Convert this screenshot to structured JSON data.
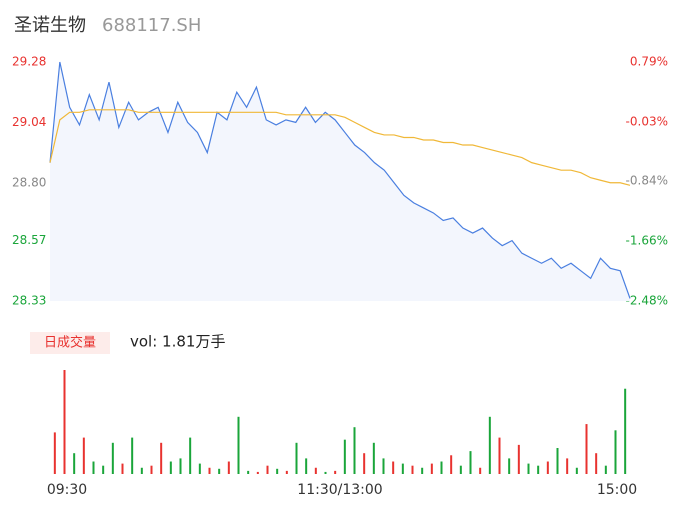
{
  "header": {
    "title": "圣诺生物",
    "code": "688117.SH"
  },
  "chart_data": [
    {
      "type": "line",
      "ylim": [
        28.33,
        29.28
      ],
      "yticks": [
        29.28,
        29.04,
        {
          "value": 28.8,
          "label": "28.80"
        },
        28.57,
        28.33
      ],
      "ytick_colors": [
        "#e8322f",
        "#e8322f",
        "#888888",
        "#1aa53a",
        "#1aa53a"
      ],
      "y2lim": [
        -2.48,
        0.79
      ],
      "y2ticks": [
        {
          "value": 0.79,
          "label": "0.79%"
        },
        {
          "value": -0.03,
          "label": "-0.03%"
        },
        {
          "value": -0.84,
          "label": "-0.84%"
        },
        {
          "value": -1.66,
          "label": "-1.66%"
        },
        {
          "value": -2.48,
          "label": "-2.48%"
        }
      ],
      "series": [
        {
          "color": "#4a7fe0",
          "values": [
            28.88,
            29.28,
            29.1,
            29.03,
            29.15,
            29.05,
            29.2,
            29.02,
            29.12,
            29.05,
            29.08,
            29.1,
            29.0,
            29.12,
            29.04,
            29.0,
            28.92,
            29.08,
            29.05,
            29.16,
            29.1,
            29.18,
            29.05,
            29.03,
            29.05,
            29.04,
            29.1,
            29.04,
            29.08,
            29.05,
            29.0,
            28.95,
            28.92,
            28.88,
            28.85,
            28.8,
            28.75,
            28.72,
            28.7,
            28.68,
            28.65,
            28.66,
            28.62,
            28.6,
            28.62,
            28.58,
            28.55,
            28.57,
            28.52,
            28.5,
            28.48,
            28.5,
            28.46,
            28.48,
            28.45,
            28.42,
            28.5,
            28.46,
            28.45,
            28.34
          ]
        },
        {
          "color": "#f0b838",
          "values": [
            28.88,
            29.05,
            29.08,
            29.08,
            29.09,
            29.09,
            29.09,
            29.09,
            29.09,
            29.08,
            29.08,
            29.08,
            29.08,
            29.08,
            29.08,
            29.08,
            29.08,
            29.08,
            29.08,
            29.08,
            29.08,
            29.08,
            29.08,
            29.08,
            29.07,
            29.07,
            29.07,
            29.07,
            29.07,
            29.07,
            29.06,
            29.04,
            29.02,
            29.0,
            28.99,
            28.99,
            28.98,
            28.98,
            28.97,
            28.97,
            28.96,
            28.96,
            28.95,
            28.95,
            28.94,
            28.93,
            28.92,
            28.91,
            28.9,
            28.88,
            28.87,
            28.86,
            28.85,
            28.85,
            28.84,
            28.82,
            28.81,
            28.8,
            28.8,
            28.79
          ]
        }
      ]
    },
    {
      "type": "bar",
      "legend_label": "日成交量",
      "summary": "vol: 1.81万手",
      "ylim": [
        0,
        100
      ],
      "categories": [
        "09:30",
        null,
        null,
        null,
        null,
        null,
        null,
        null,
        null,
        null,
        null,
        null,
        null,
        null,
        null,
        null,
        null,
        null,
        null,
        null,
        null,
        null,
        null,
        null,
        null,
        null,
        null,
        null,
        null,
        null,
        "11:30/13:00",
        null,
        null,
        null,
        null,
        null,
        null,
        null,
        null,
        null,
        null,
        null,
        null,
        null,
        null,
        null,
        null,
        null,
        null,
        null,
        null,
        null,
        null,
        null,
        null,
        null,
        null,
        null,
        null,
        "15:00"
      ],
      "values": [
        40,
        100,
        20,
        35,
        12,
        8,
        30,
        10,
        35,
        6,
        8,
        30,
        12,
        15,
        35,
        10,
        6,
        5,
        12,
        55,
        3,
        2,
        8,
        5,
        3,
        30,
        15,
        6,
        2,
        3,
        33,
        45,
        20,
        30,
        15,
        12,
        10,
        8,
        6,
        10,
        12,
        18,
        8,
        22,
        6,
        55,
        35,
        15,
        28,
        10,
        8,
        12,
        25,
        15,
        6,
        48,
        20,
        8,
        42,
        82
      ],
      "colors": [
        "#e8322f",
        "#e8322f",
        "#1aa53a",
        "#e8322f",
        "#1aa53a",
        "#1aa53a",
        "#1aa53a",
        "#e8322f",
        "#1aa53a",
        "#1aa53a",
        "#e8322f",
        "#e8322f",
        "#1aa53a",
        "#1aa53a",
        "#1aa53a",
        "#1aa53a",
        "#e8322f",
        "#1aa53a",
        "#e8322f",
        "#1aa53a",
        "#1aa53a",
        "#e8322f",
        "#e8322f",
        "#1aa53a",
        "#e8322f",
        "#1aa53a",
        "#1aa53a",
        "#e8322f",
        "#1aa53a",
        "#e8322f",
        "#1aa53a",
        "#1aa53a",
        "#e8322f",
        "#1aa53a",
        "#1aa53a",
        "#e8322f",
        "#1aa53a",
        "#e8322f",
        "#1aa53a",
        "#e8322f",
        "#1aa53a",
        "#e8322f",
        "#1aa53a",
        "#1aa53a",
        "#e8322f",
        "#1aa53a",
        "#e8322f",
        "#1aa53a",
        "#e8322f",
        "#1aa53a",
        "#1aa53a",
        "#e8322f",
        "#1aa53a",
        "#e8322f",
        "#1aa53a",
        "#e8322f",
        "#e8322f",
        "#1aa53a",
        "#1aa53a",
        "#1aa53a"
      ]
    }
  ]
}
